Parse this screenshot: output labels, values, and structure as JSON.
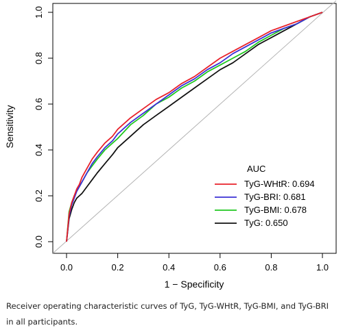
{
  "chart_data": {
    "type": "line",
    "xlabel": "1 − Specificity",
    "ylabel": "Sensitivity",
    "xlim": [
      0,
      1
    ],
    "ylim": [
      0,
      1
    ],
    "x_ticks": [
      "0.0",
      "0.2",
      "0.4",
      "0.6",
      "0.8",
      "1.0"
    ],
    "y_ticks": [
      "0.0",
      "0.2",
      "0.4",
      "0.6",
      "0.8",
      "1.0"
    ],
    "grid": false,
    "legend": {
      "title": "AUC",
      "position": "bottom-right"
    },
    "reference_line": {
      "x": [
        0,
        1
      ],
      "y": [
        0,
        1
      ],
      "color": "#b3b3b3"
    },
    "series": [
      {
        "name": "TyG-WHtR: 0.694",
        "color": "#e8202a",
        "x": [
          0,
          0.01,
          0.02,
          0.03,
          0.04,
          0.05,
          0.06,
          0.08,
          0.1,
          0.12,
          0.15,
          0.18,
          0.2,
          0.25,
          0.3,
          0.35,
          0.4,
          0.45,
          0.5,
          0.55,
          0.6,
          0.65,
          0.7,
          0.75,
          0.8,
          0.85,
          0.9,
          0.95,
          1.0
        ],
        "y": [
          0,
          0.12,
          0.17,
          0.2,
          0.23,
          0.25,
          0.28,
          0.32,
          0.36,
          0.39,
          0.43,
          0.46,
          0.49,
          0.54,
          0.58,
          0.62,
          0.65,
          0.69,
          0.72,
          0.76,
          0.8,
          0.83,
          0.86,
          0.89,
          0.92,
          0.94,
          0.96,
          0.98,
          1.0
        ]
      },
      {
        "name": "TyG-BRI: 0.681",
        "color": "#3a2fd6",
        "x": [
          0,
          0.01,
          0.02,
          0.03,
          0.04,
          0.05,
          0.06,
          0.08,
          0.1,
          0.12,
          0.15,
          0.18,
          0.2,
          0.25,
          0.3,
          0.35,
          0.4,
          0.45,
          0.5,
          0.55,
          0.6,
          0.65,
          0.7,
          0.75,
          0.8,
          0.85,
          0.9,
          0.95,
          1.0
        ],
        "y": [
          0,
          0.11,
          0.16,
          0.19,
          0.22,
          0.24,
          0.26,
          0.3,
          0.34,
          0.37,
          0.41,
          0.44,
          0.47,
          0.52,
          0.56,
          0.6,
          0.64,
          0.68,
          0.71,
          0.75,
          0.78,
          0.82,
          0.85,
          0.88,
          0.91,
          0.93,
          0.95,
          0.98,
          1.0
        ]
      },
      {
        "name": "TyG-BMI: 0.678",
        "color": "#1ec71e",
        "x": [
          0,
          0.01,
          0.02,
          0.03,
          0.04,
          0.05,
          0.06,
          0.08,
          0.1,
          0.12,
          0.15,
          0.18,
          0.2,
          0.25,
          0.3,
          0.35,
          0.4,
          0.45,
          0.5,
          0.55,
          0.6,
          0.65,
          0.7,
          0.75,
          0.8,
          0.85,
          0.9,
          0.95,
          1.0
        ],
        "y": [
          0,
          0.13,
          0.17,
          0.2,
          0.22,
          0.24,
          0.26,
          0.3,
          0.33,
          0.36,
          0.4,
          0.43,
          0.45,
          0.51,
          0.55,
          0.6,
          0.63,
          0.67,
          0.7,
          0.74,
          0.77,
          0.8,
          0.83,
          0.87,
          0.9,
          0.93,
          0.95,
          0.98,
          1.0
        ]
      },
      {
        "name": "TyG: 0.650",
        "color": "#111111",
        "x": [
          0,
          0.01,
          0.02,
          0.03,
          0.04,
          0.05,
          0.06,
          0.08,
          0.1,
          0.12,
          0.15,
          0.18,
          0.2,
          0.25,
          0.3,
          0.35,
          0.4,
          0.45,
          0.5,
          0.55,
          0.6,
          0.65,
          0.7,
          0.75,
          0.8,
          0.85,
          0.9,
          0.95,
          1.0
        ],
        "y": [
          0,
          0.1,
          0.14,
          0.17,
          0.19,
          0.2,
          0.21,
          0.24,
          0.27,
          0.3,
          0.34,
          0.38,
          0.41,
          0.46,
          0.51,
          0.55,
          0.59,
          0.63,
          0.67,
          0.71,
          0.75,
          0.78,
          0.82,
          0.86,
          0.89,
          0.92,
          0.95,
          0.98,
          1.0
        ]
      }
    ]
  },
  "caption": {
    "text": "Receiver operating characteristic curves of TyG, TyG-WHtR, TyG-BMI, and TyG-BRI in all participants."
  }
}
